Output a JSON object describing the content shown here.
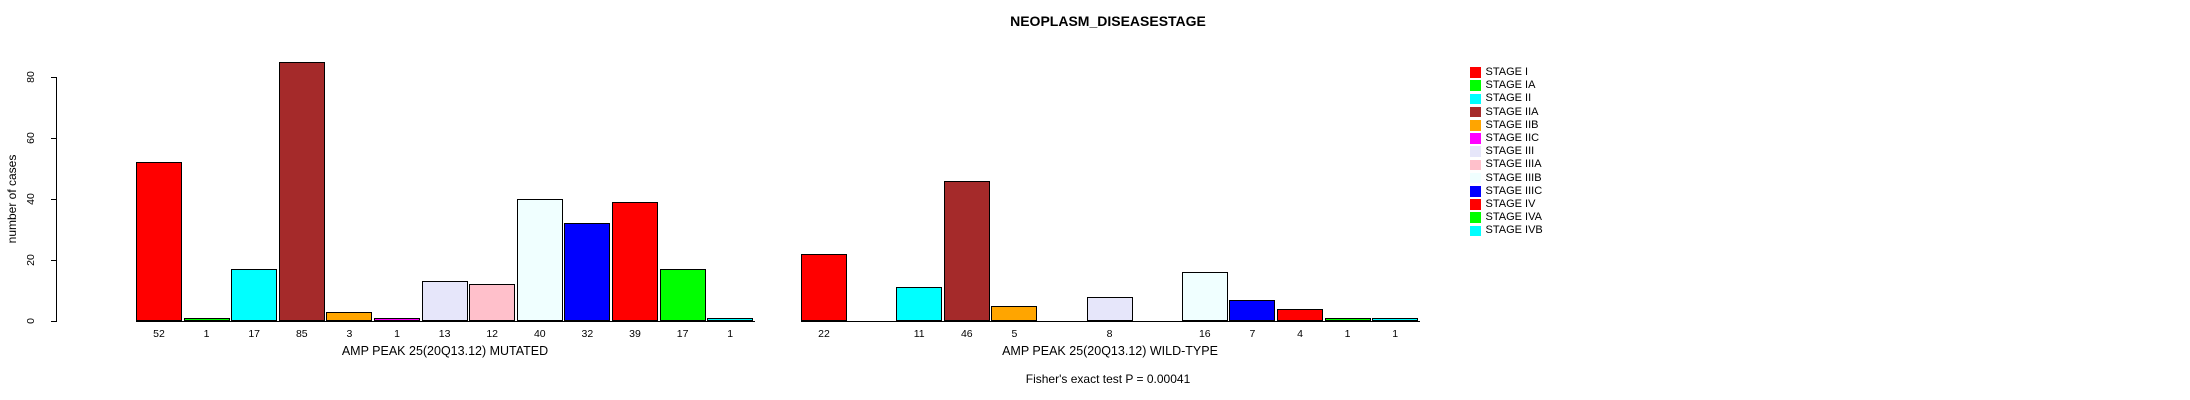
{
  "chart_data": {
    "type": "bar",
    "title": "NEOPLASM_DISEASESTAGE",
    "ylabel": "number of cases",
    "ylim": [
      0,
      85
    ],
    "yticks": [
      0,
      20,
      40,
      60,
      80
    ],
    "grid": false,
    "legend_position": "right",
    "categories": [
      "STAGE I",
      "STAGE IA",
      "STAGE II",
      "STAGE IIA",
      "STAGE IIB",
      "STAGE IIC",
      "STAGE III",
      "STAGE IIIA",
      "STAGE IIIB",
      "STAGE IIIC",
      "STAGE IV",
      "STAGE IVA",
      "STAGE IVB"
    ],
    "colors": [
      "#FF0000",
      "#00FF00",
      "#00FFFF",
      "#A52A2A",
      "#FFA500",
      "#FF00FF",
      "#E6E6FA",
      "#FFC0CB",
      "#F0FFFF",
      "#0000FF",
      "#FF0000",
      "#00FF00",
      "#00FFFF"
    ],
    "series": [
      {
        "name": "AMP PEAK 25(20Q13.12) MUTATED",
        "values": [
          52,
          1,
          17,
          85,
          3,
          1,
          13,
          12,
          40,
          32,
          39,
          17,
          1
        ]
      },
      {
        "name": "AMP PEAK 25(20Q13.12) WILD-TYPE",
        "values": [
          22,
          0,
          11,
          46,
          5,
          0,
          8,
          0,
          16,
          7,
          4,
          1,
          1
        ]
      }
    ],
    "annotation": "Fisher's exact test P = 0.00041"
  }
}
